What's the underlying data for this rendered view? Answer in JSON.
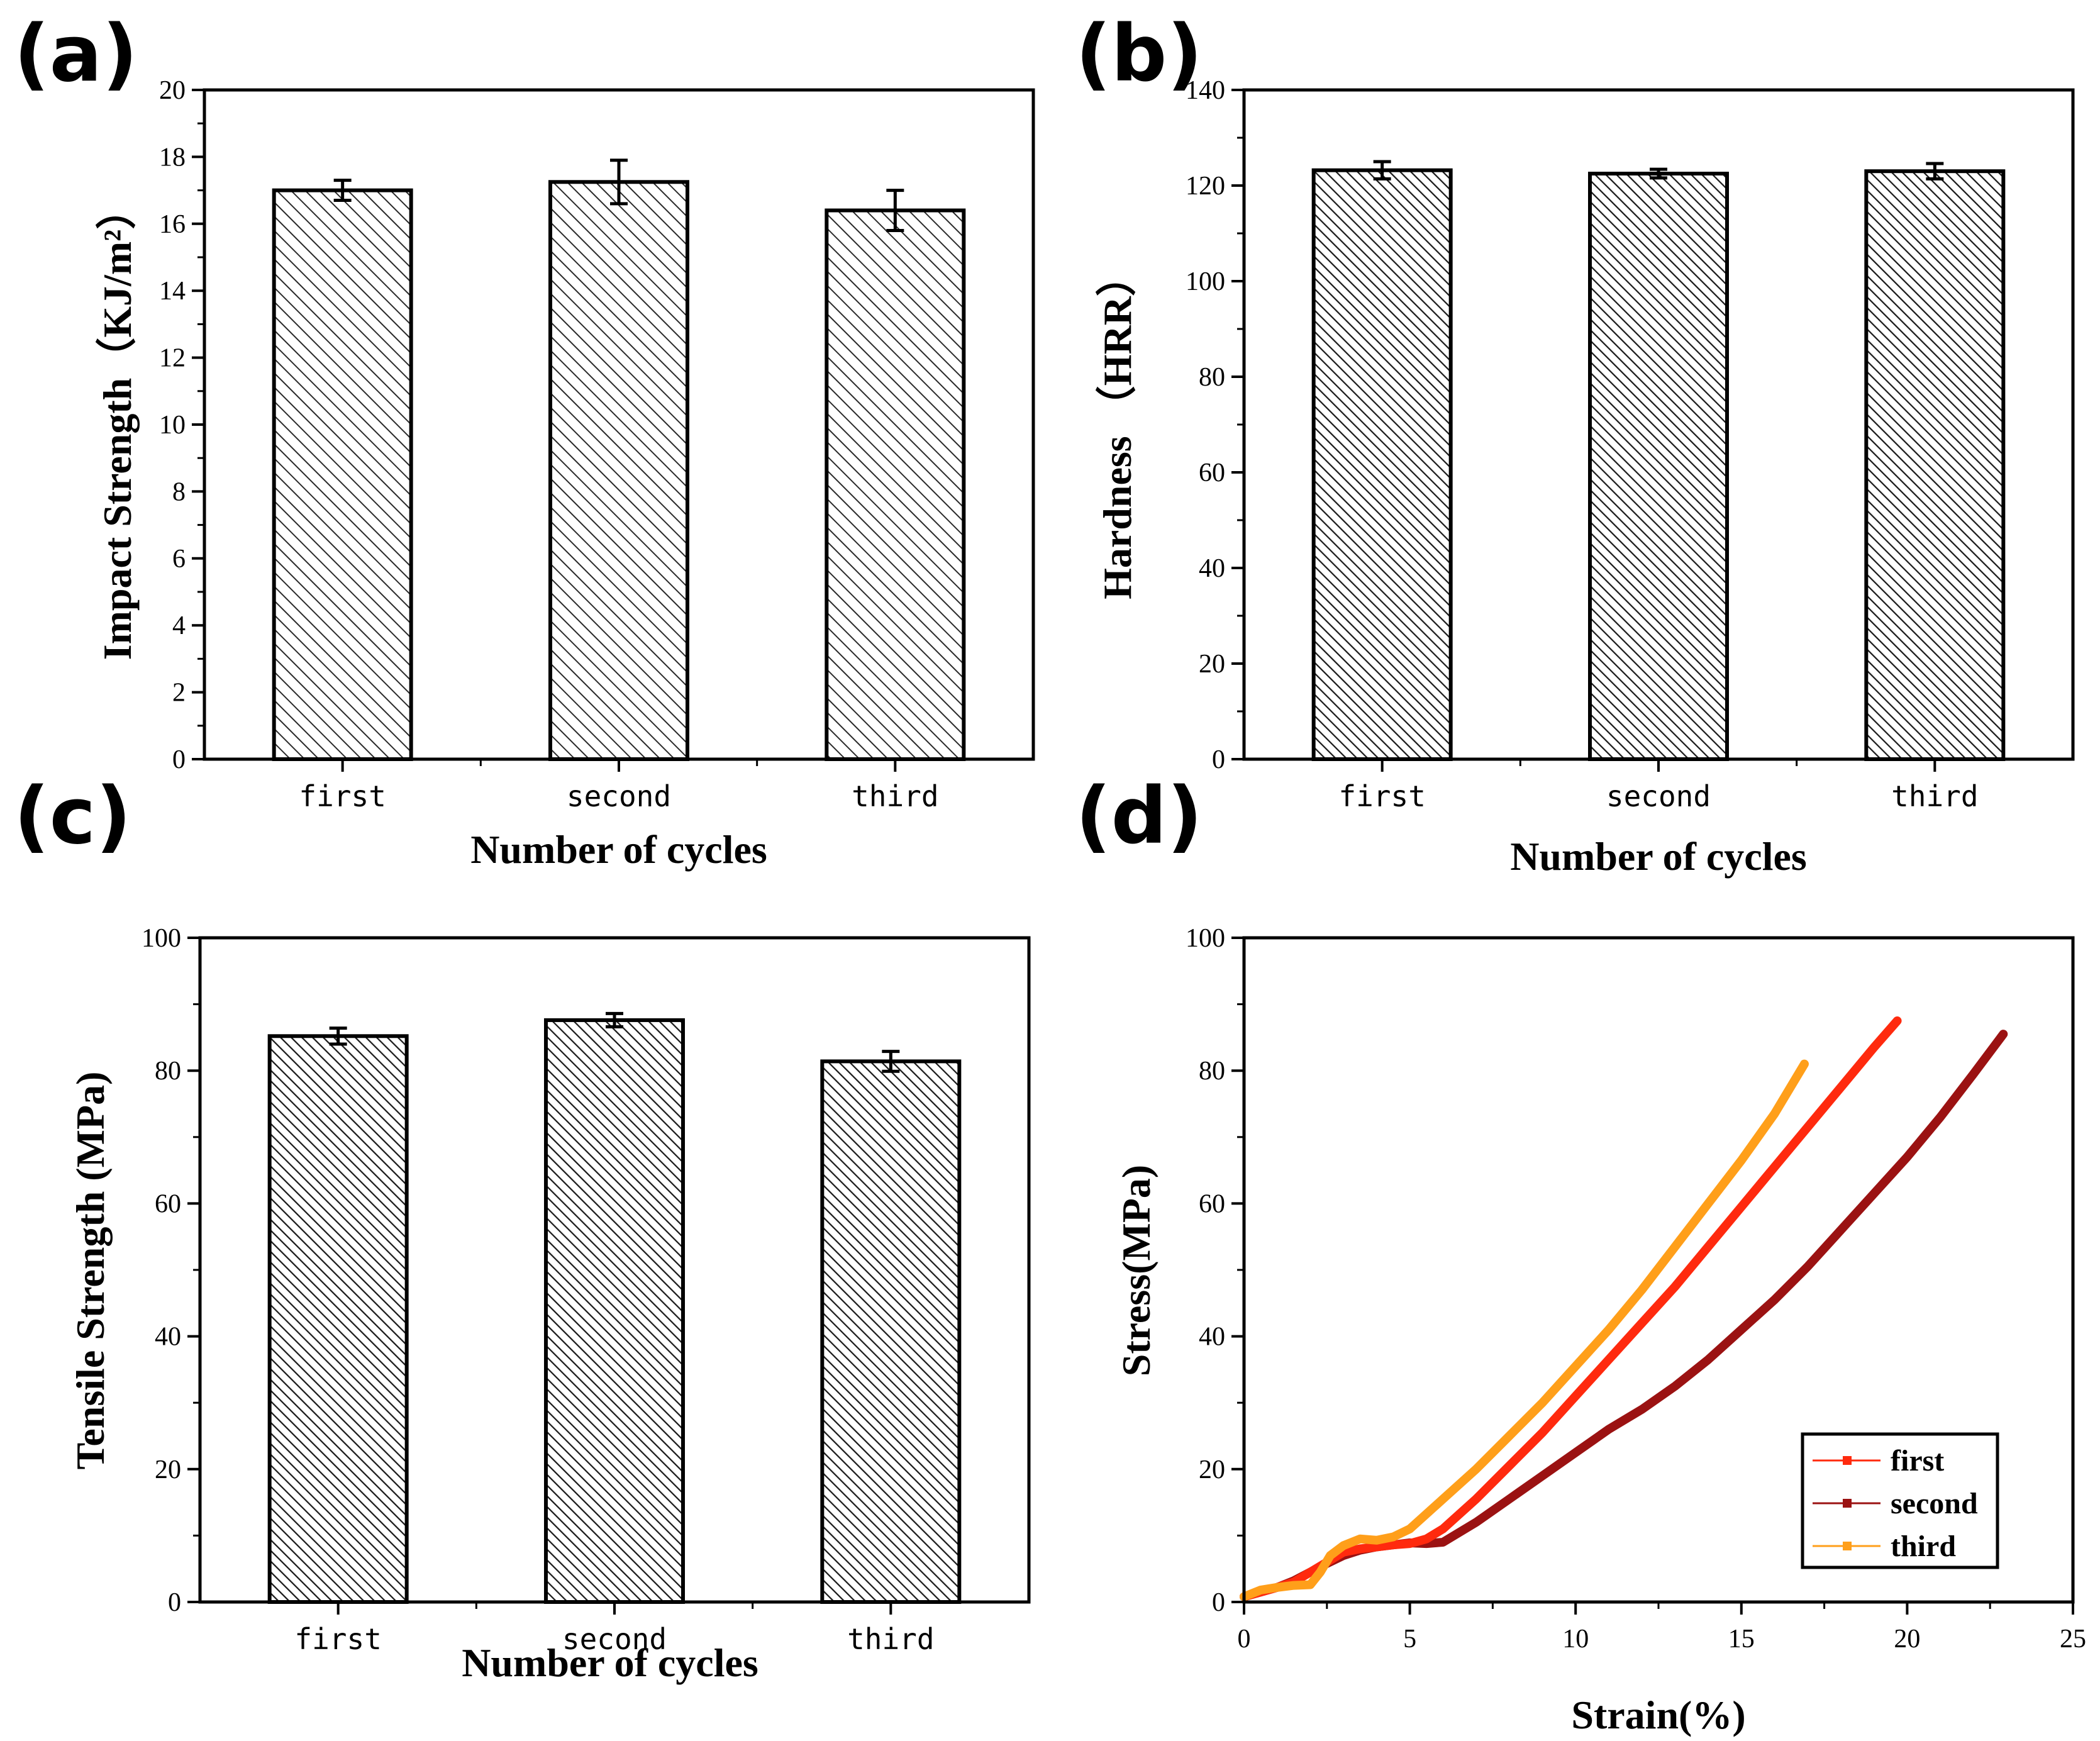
{
  "chart_data": [
    {
      "id": "a",
      "panel_label": "(a)",
      "type": "bar",
      "categories": [
        "first",
        "second",
        "third"
      ],
      "values": [
        17.0,
        17.25,
        16.4
      ],
      "errors": [
        0.3,
        0.65,
        0.6
      ],
      "xlabel": "Number of cycles",
      "ylabel": "Impact Strength（KJ/m²）",
      "ylim": [
        0,
        20
      ],
      "yticks": [
        0,
        2,
        4,
        6,
        8,
        10,
        12,
        14,
        16,
        18,
        20
      ],
      "ytick_labels": [
        "0",
        "2",
        "4",
        "6",
        "8",
        "10",
        "12",
        "14",
        "16",
        "18",
        "20"
      ],
      "fill": "hatched"
    },
    {
      "id": "b",
      "panel_label": "(b)",
      "type": "bar",
      "categories": [
        "first",
        "second",
        "third"
      ],
      "values": [
        123.2,
        122.5,
        123.0
      ],
      "errors": [
        1.8,
        0.9,
        1.6
      ],
      "xlabel": "Number of cycles",
      "ylabel": "Hardness （HRR）",
      "ylim": [
        0,
        140
      ],
      "yticks": [
        0,
        20,
        40,
        60,
        80,
        100,
        120,
        140
      ],
      "ytick_labels": [
        "0",
        "20",
        "40",
        "60",
        "80",
        "100",
        "120",
        "140"
      ],
      "fill": "hatched"
    },
    {
      "id": "c",
      "panel_label": "(c)",
      "type": "bar",
      "categories": [
        "first",
        "second",
        "third"
      ],
      "values": [
        85.2,
        87.6,
        81.4
      ],
      "errors": [
        1.2,
        1.0,
        1.5
      ],
      "xlabel": "Number of cycles",
      "ylabel": "Tensile Strength (MPa)",
      "ylim": [
        0,
        100
      ],
      "yticks": [
        0,
        20,
        40,
        60,
        80,
        100
      ],
      "ytick_labels": [
        "0",
        "20",
        "40",
        "60",
        "80",
        "100"
      ],
      "fill": "hatched"
    },
    {
      "id": "d",
      "panel_label": "(d)",
      "type": "line",
      "xlabel": "Strain(%)",
      "ylabel": "Stress(MPa)",
      "xlim": [
        0,
        25
      ],
      "ylim": [
        0,
        100
      ],
      "xticks": [
        0,
        5,
        10,
        15,
        20,
        25
      ],
      "xtick_labels": [
        "0",
        "5",
        "10",
        "15",
        "20",
        "25"
      ],
      "yticks": [
        0,
        20,
        40,
        60,
        80,
        100
      ],
      "ytick_labels": [
        "0",
        "20",
        "40",
        "60",
        "80",
        "100"
      ],
      "legend_position": "bottom-right",
      "series": [
        {
          "name": "first",
          "color": "#ff2a0e",
          "x": [
            0,
            0.5,
            1.0,
            1.5,
            2.0,
            2.5,
            3.0,
            3.5,
            4.0,
            4.5,
            5.0,
            5.5,
            6.0,
            7.0,
            8.0,
            9.0,
            10.0,
            11.0,
            12.0,
            13.0,
            14.0,
            15.0,
            16.0,
            17.0,
            18.0,
            19.0,
            19.7
          ],
          "y": [
            0.8,
            1.5,
            2.2,
            3.0,
            4.5,
            6.0,
            7.5,
            8.0,
            8.3,
            8.6,
            8.8,
            9.5,
            11.0,
            15.5,
            20.5,
            25.5,
            31.0,
            36.5,
            42.0,
            47.5,
            53.5,
            59.5,
            65.5,
            71.5,
            77.5,
            83.5,
            87.5
          ]
        },
        {
          "name": "second",
          "color": "#9b1212",
          "x": [
            0,
            0.5,
            1.0,
            1.5,
            2.0,
            2.5,
            3.0,
            3.5,
            4.0,
            4.5,
            5.0,
            5.5,
            6.0,
            7.0,
            8.0,
            9.0,
            10.0,
            11.0,
            12.0,
            13.0,
            14.0,
            15.0,
            16.0,
            17.0,
            18.0,
            19.0,
            20.0,
            21.0,
            22.0,
            22.9
          ],
          "y": [
            0.8,
            1.5,
            2.2,
            3.2,
            4.5,
            5.8,
            7.0,
            7.8,
            8.3,
            8.6,
            8.9,
            8.8,
            9.0,
            12.0,
            15.5,
            19.0,
            22.5,
            26.0,
            29.0,
            32.5,
            36.5,
            41.0,
            45.5,
            50.5,
            56.0,
            61.5,
            67.0,
            73.0,
            79.5,
            85.5
          ]
        },
        {
          "name": "third",
          "color": "#ff9f1a",
          "x": [
            0,
            0.5,
            1.0,
            1.5,
            2.0,
            2.3,
            2.6,
            3.0,
            3.5,
            4.0,
            4.5,
            5.0,
            6.0,
            7.0,
            8.0,
            9.0,
            10.0,
            11.0,
            12.0,
            13.0,
            14.0,
            15.0,
            16.0,
            16.9
          ],
          "y": [
            0.8,
            1.8,
            2.2,
            2.5,
            2.6,
            4.5,
            7.0,
            8.5,
            9.5,
            9.3,
            9.8,
            11.0,
            15.5,
            20.0,
            25.0,
            30.0,
            35.5,
            41.0,
            47.0,
            53.5,
            60.0,
            66.5,
            73.5,
            81.0
          ]
        }
      ]
    }
  ]
}
